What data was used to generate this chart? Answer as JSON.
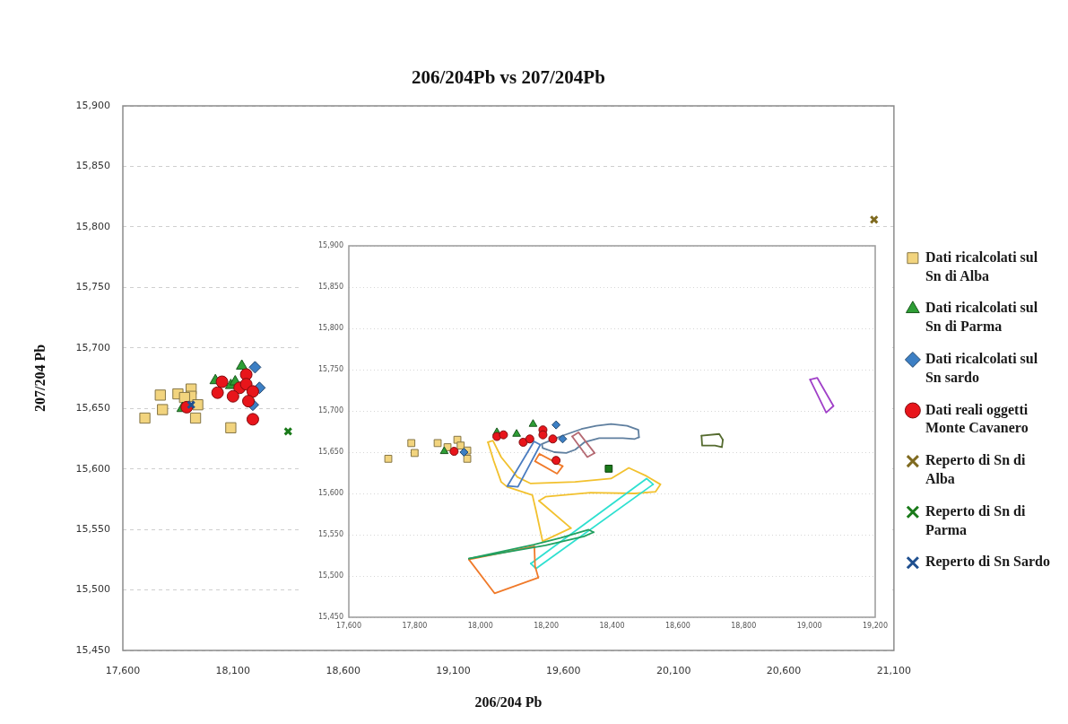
{
  "chart_data": [
    {
      "type": "scatter",
      "title": "206/204Pb vs 207/204Pb",
      "xlabel": "206/204 Pb",
      "ylabel": "207/204 Pb",
      "xlim": [
        17600,
        21100
      ],
      "ylim": [
        15450,
        15900
      ],
      "xticks": [
        {
          "value": 17600,
          "label": "17,600"
        },
        {
          "value": 18100,
          "label": "18,100"
        },
        {
          "value": 18600,
          "label": "18,600"
        },
        {
          "value": 19100,
          "label": "19,100"
        },
        {
          "value": 19600,
          "label": "19,600"
        },
        {
          "value": 20100,
          "label": "20,100"
        },
        {
          "value": 20600,
          "label": "20,600"
        },
        {
          "value": 21100,
          "label": "21,100"
        }
      ],
      "yticks": [
        {
          "value": 15450,
          "label": "15,450"
        },
        {
          "value": 15500,
          "label": "15,500"
        },
        {
          "value": 15550,
          "label": "15,550"
        },
        {
          "value": 15600,
          "label": "15,600"
        },
        {
          "value": 15650,
          "label": "15,650"
        },
        {
          "value": 15700,
          "label": "15,700"
        },
        {
          "value": 15750,
          "label": "15,750"
        },
        {
          "value": 15800,
          "label": "15,800"
        },
        {
          "value": 15850,
          "label": "15,850"
        },
        {
          "value": 15900,
          "label": "15,900"
        }
      ],
      "grid": "y",
      "legend": "right",
      "series": [
        {
          "name": "Dati ricalcolati sul Sn di Alba",
          "color": "#f2d47e",
          "marker": "square",
          "x": [
            17700,
            17770,
            17780,
            17850,
            17910,
            17910,
            17880,
            17930,
            17940,
            18090
          ],
          "values": [
            15642,
            15661,
            15649,
            15662,
            15666,
            15660,
            15659,
            15642,
            15653,
            15634
          ]
        },
        {
          "name": "Dati ricalcolati sul Sn di Parma",
          "color": "#2e9e35",
          "marker": "triangle",
          "x": [
            17870,
            18020,
            18090,
            18110,
            18140
          ],
          "values": [
            15650,
            15673,
            15669,
            15672,
            15685
          ]
        },
        {
          "name": "Dati ricalcolati sul Sn sardo",
          "color": "#3c7fc4",
          "marker": "diamond",
          "x": [
            18200,
            18220,
            18190
          ],
          "values": [
            15684,
            15667,
            15653
          ]
        },
        {
          "name": "Dati reali oggetti Monte Cavanero",
          "color": "#e8151b",
          "marker": "circle",
          "x": [
            18160,
            18050,
            18030,
            18130,
            18160,
            18190,
            18100,
            18170,
            18190,
            17890
          ],
          "values": [
            15678,
            15672,
            15663,
            15667,
            15670,
            15664,
            15660,
            15656,
            15641,
            15651
          ]
        },
        {
          "name": "Reperto di Sn di Alba",
          "color": "#7f6a1f",
          "marker": "cross",
          "x": [
            21010
          ],
          "values": [
            15806
          ]
        },
        {
          "name": "Reperto di Sn di Parma",
          "color": "#1a7a1a",
          "marker": "cross",
          "x": [
            18350
          ],
          "values": [
            15631
          ]
        },
        {
          "name": "Reperto di Sn Sardo",
          "color": "#1f4f8f",
          "marker": "cross",
          "x": [
            17910
          ],
          "values": [
            15653
          ]
        }
      ]
    },
    {
      "type": "scatter",
      "xlim": [
        17600,
        19200
      ],
      "ylim": [
        15450,
        15900
      ],
      "xticks": [
        {
          "value": 17600,
          "label": "17,600"
        },
        {
          "value": 17800,
          "label": "17,800"
        },
        {
          "value": 18000,
          "label": "18,000"
        },
        {
          "value": 18200,
          "label": "18,200"
        },
        {
          "value": 18400,
          "label": "18,400"
        },
        {
          "value": 18600,
          "label": "18,600"
        },
        {
          "value": 18800,
          "label": "18,800"
        },
        {
          "value": 19000,
          "label": "19,000"
        },
        {
          "value": 19200,
          "label": "19,200"
        }
      ],
      "yticks": [
        {
          "value": 15450,
          "label": "15,450"
        },
        {
          "value": 15500,
          "label": "15,500"
        },
        {
          "value": 15550,
          "label": "15,550"
        },
        {
          "value": 15600,
          "label": "15,600"
        },
        {
          "value": 15650,
          "label": "15,650"
        },
        {
          "value": 15700,
          "label": "15,700"
        },
        {
          "value": 15750,
          "label": "15,750"
        },
        {
          "value": 15800,
          "label": "15,800"
        },
        {
          "value": 15850,
          "label": "15,850"
        },
        {
          "value": 15900,
          "label": "15,900"
        }
      ],
      "grid": "y",
      "series": [
        {
          "type": "line",
          "color": "#f2c12e",
          "marker": "none",
          "x": [
            18023,
            18038,
            18063,
            18112,
            18153,
            18288,
            18397,
            18451,
            18505,
            18547
          ],
          "values": [
            15662,
            15664,
            15644,
            15620,
            15612,
            15614,
            15618,
            15631,
            15621,
            15611
          ]
        },
        {
          "type": "line",
          "color": "#f2c12e",
          "marker": "none",
          "x": [
            18178,
            18198,
            18334,
            18469,
            18532,
            18547
          ],
          "values": [
            15591,
            15596,
            15601,
            15600,
            15602,
            15611
          ]
        },
        {
          "type": "line",
          "color": "#f2c12e",
          "marker": "none",
          "x": [
            18178,
            18275
          ],
          "values": [
            15591,
            15558
          ]
        },
        {
          "type": "line",
          "color": "#f2c12e",
          "marker": "none",
          "x": [
            18023,
            18040,
            18063,
            18081,
            18158,
            18169,
            18189,
            18275
          ],
          "values": [
            15662,
            15640,
            15614,
            15608,
            15598,
            15579,
            15542,
            15558
          ]
        },
        {
          "type": "line",
          "color": "#2ee0d0",
          "marker": "none",
          "x": [
            18153,
            18505,
            18525
          ],
          "values": [
            15515,
            15618,
            15611
          ]
        },
        {
          "type": "line",
          "color": "#2ee0d0",
          "marker": "none",
          "x": [
            18153,
            18169,
            18525
          ],
          "values": [
            15515,
            15509,
            15611
          ]
        },
        {
          "type": "line",
          "color": "#f07a2a",
          "marker": "none",
          "x": [
            17965,
            18043,
            18176
          ],
          "values": [
            15520,
            15479,
            15498
          ]
        },
        {
          "type": "line",
          "color": "#f07a2a",
          "marker": "none",
          "x": [
            17965,
            18164,
            18166,
            18176
          ],
          "values": [
            15520,
            15536,
            15512,
            15498
          ]
        },
        {
          "type": "line",
          "color": "#22a060",
          "marker": "none",
          "x": [
            17965,
            18162,
            18243,
            18329,
            18344
          ],
          "values": [
            15521,
            15538,
            15546,
            15556,
            15553
          ]
        },
        {
          "type": "line",
          "color": "#22a060",
          "marker": "none",
          "x": [
            17965,
            18198,
            18315,
            18344
          ],
          "values": [
            15521,
            15537,
            15548,
            15553
          ]
        },
        {
          "type": "line",
          "color": "#5f7f9f",
          "marker": "none",
          "x": [
            18187,
            18243,
            18307,
            18352,
            18397,
            18446,
            18480,
            18482
          ],
          "values": [
            15660,
            15669,
            15678,
            15682,
            15684,
            15682,
            15677,
            15668
          ]
        },
        {
          "type": "line",
          "color": "#5f7f9f",
          "marker": "none",
          "x": [
            18187,
            18189,
            18225,
            18261,
            18288,
            18316,
            18361,
            18433,
            18469,
            18482
          ],
          "values": [
            15660,
            15655,
            15650,
            15649,
            15653,
            15662,
            15667,
            15667,
            15666,
            15668
          ]
        },
        {
          "type": "line",
          "color": "#4a7cc0",
          "marker": "none",
          "x": [
            18082,
            18163,
            18182
          ],
          "values": [
            15609,
            15663,
            15659
          ]
        },
        {
          "type": "line",
          "color": "#4a7cc0",
          "marker": "none",
          "x": [
            18082,
            18114,
            18182
          ],
          "values": [
            15609,
            15608,
            15659
          ]
        },
        {
          "type": "line",
          "color": "#f07a2a",
          "marker": "none",
          "x": [
            18166,
            18179,
            18250
          ],
          "values": [
            15639,
            15648,
            15633
          ]
        },
        {
          "type": "line",
          "color": "#f07a2a",
          "marker": "none",
          "x": [
            18166,
            18233,
            18250
          ],
          "values": [
            15639,
            15624,
            15633
          ]
        },
        {
          "type": "line",
          "color": "#b56a73",
          "marker": "none",
          "x": [
            18279,
            18298,
            18347
          ],
          "values": [
            15669,
            15674,
            15649
          ]
        },
        {
          "type": "line",
          "color": "#b56a73",
          "marker": "none",
          "x": [
            18279,
            18325,
            18347
          ],
          "values": [
            15669,
            15644,
            15649
          ]
        },
        {
          "type": "line",
          "color": "#556b2f",
          "marker": "none",
          "x": [
            18672,
            18726,
            18737
          ],
          "values": [
            15670,
            15672,
            15665
          ]
        },
        {
          "type": "line",
          "color": "#556b2f",
          "marker": "none",
          "x": [
            18672,
            18674,
            18713,
            18734,
            18737
          ],
          "values": [
            15670,
            15658,
            15658,
            15656,
            15665
          ]
        },
        {
          "type": "line",
          "color": "#a040c8",
          "marker": "none",
          "x": [
            19002,
            19024,
            19073
          ],
          "values": [
            15738,
            15740,
            15706
          ]
        },
        {
          "type": "line",
          "color": "#a040c8",
          "marker": "none",
          "x": [
            19002,
            19051,
            19073
          ],
          "values": [
            15738,
            15698,
            15706
          ]
        },
        {
          "color": "#f2d47e",
          "marker": "square",
          "x": [
            17720,
            17790,
            17800,
            17870,
            17900,
            17930,
            17940,
            17960,
            17960
          ],
          "values": [
            15642,
            15661,
            15649,
            15661,
            15656,
            15665,
            15658,
            15652,
            15642
          ]
        },
        {
          "color": "#2e9e35",
          "marker": "triangle",
          "x": [
            17890,
            18050,
            18110,
            18160
          ],
          "values": [
            15651,
            15674,
            15672,
            15684
          ]
        },
        {
          "color": "#3c7fc4",
          "marker": "diamond",
          "x": [
            17950,
            18230,
            18250
          ],
          "values": [
            15650,
            15683,
            15666
          ]
        },
        {
          "color": "#e8151b",
          "marker": "circle",
          "x": [
            17920,
            18050,
            18070,
            18130,
            18150,
            18190,
            18190,
            18220,
            18230
          ],
          "values": [
            15651,
            15669,
            15671,
            15662,
            15666,
            15677,
            15671,
            15666,
            15640
          ]
        },
        {
          "color": "#1a7a1a",
          "marker": "square",
          "x": [
            18390
          ],
          "values": [
            15630
          ]
        }
      ]
    }
  ]
}
